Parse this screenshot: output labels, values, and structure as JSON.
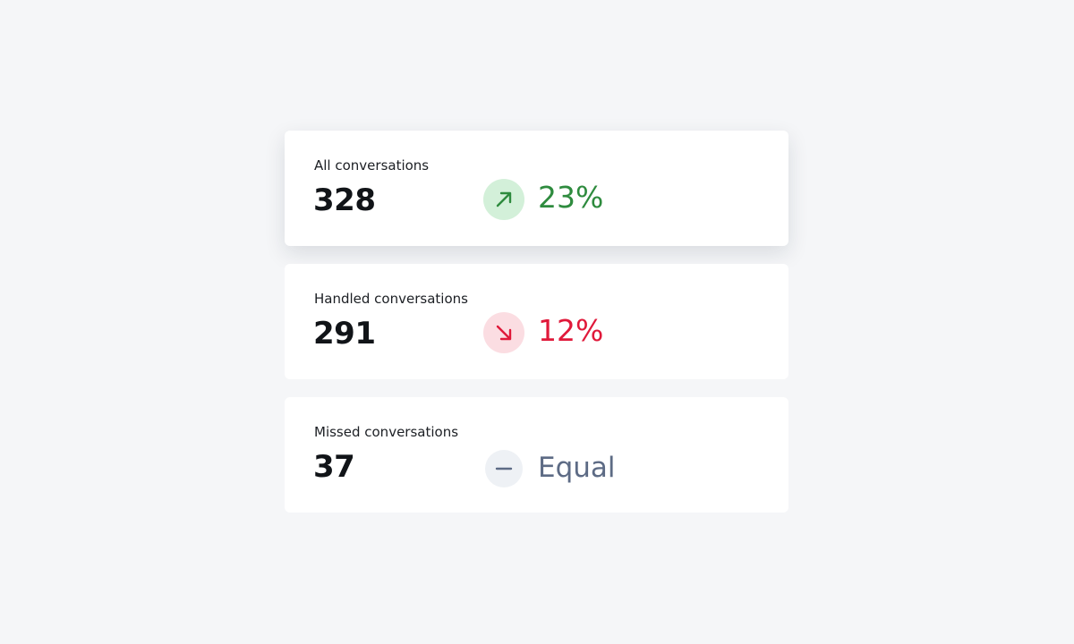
{
  "colors": {
    "up": "#2e8b3e",
    "up_bg": "#d3f0d9",
    "down": "#e0193a",
    "down_bg": "#fbdde2",
    "neutral": "#5d6b85",
    "neutral_bg": "#eef1f5"
  },
  "cards": [
    {
      "label": "All conversations",
      "value": "328",
      "trend": "up",
      "icon": "arrow-up-right-icon",
      "change": "23%"
    },
    {
      "label": "Handled conversations",
      "value": "291",
      "trend": "down",
      "icon": "arrow-down-right-icon",
      "change": "12%"
    },
    {
      "label": "Missed conversations",
      "value": "37",
      "trend": "neutral",
      "icon": "minus-icon",
      "change": "Equal"
    }
  ]
}
